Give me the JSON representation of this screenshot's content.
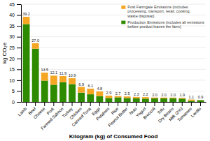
{
  "chart_data": {
    "type": "bar",
    "stacked": true,
    "categories": [
      "Lamb",
      "Beef",
      "Cheese",
      "Pork",
      "Farmed Salmon",
      "Turkey",
      "Chicken",
      "Canned Tuna",
      "Eggs",
      "Potatoes",
      "Rice",
      "Peanut Butter",
      "Nuts",
      "Yogurt",
      "Broccoli",
      "Tofu",
      "Dry Beans",
      "Milk (2%)",
      "Tomatoes",
      "Lentils"
    ],
    "series": [
      {
        "name": "Production Emissions (includes all emissions\nbefore product leaves the farm)",
        "color": "#2e8b00",
        "values": [
          35.8,
          24.5,
          9.8,
          7.9,
          9.1,
          8.2,
          4.3,
          3.5,
          2.7,
          1.8,
          2.1,
          1.8,
          1.7,
          1.5,
          1.6,
          1.6,
          1.7,
          1.5,
          0.5,
          0.8
        ]
      },
      {
        "name": "Post Farmgate Emissions (includes\nprocessing, transport, retail, cooking,\nwaste disposal)",
        "color": "#f5a623",
        "values": [
          3.4,
          2.5,
          3.7,
          4.2,
          2.8,
          2.7,
          2.6,
          2.6,
          2.1,
          1.1,
          0.6,
          0.7,
          0.6,
          0.7,
          0.4,
          0.4,
          0.3,
          0.4,
          0.6,
          0.1
        ]
      }
    ],
    "totals": [
      39.2,
      27.0,
      13.5,
      12.1,
      11.9,
      10.9,
      6.9,
      6.1,
      4.8,
      2.9,
      2.7,
      2.5,
      2.3,
      2.2,
      2.0,
      2.0,
      2.0,
      1.9,
      1.1,
      0.9
    ],
    "total_labels": [
      "39.2",
      "27.0",
      "13.5",
      "12.1",
      "11.9",
      "10.9",
      "6.9",
      "6.1",
      "4.8",
      "2.9",
      "2.7",
      "2.5",
      "2.3",
      "2.2",
      "2.0",
      "2.0",
      "2.0",
      "1.9",
      "1.1",
      "0.9"
    ],
    "ylabel": "kg CO₂e",
    "xlabel": "Kilogram (kg) of Consumed Food",
    "ylim": [
      0,
      45
    ],
    "yticks": [
      0,
      5,
      10,
      15,
      20,
      25,
      30,
      35,
      40,
      45
    ],
    "grid": true,
    "legend": "upper right"
  }
}
